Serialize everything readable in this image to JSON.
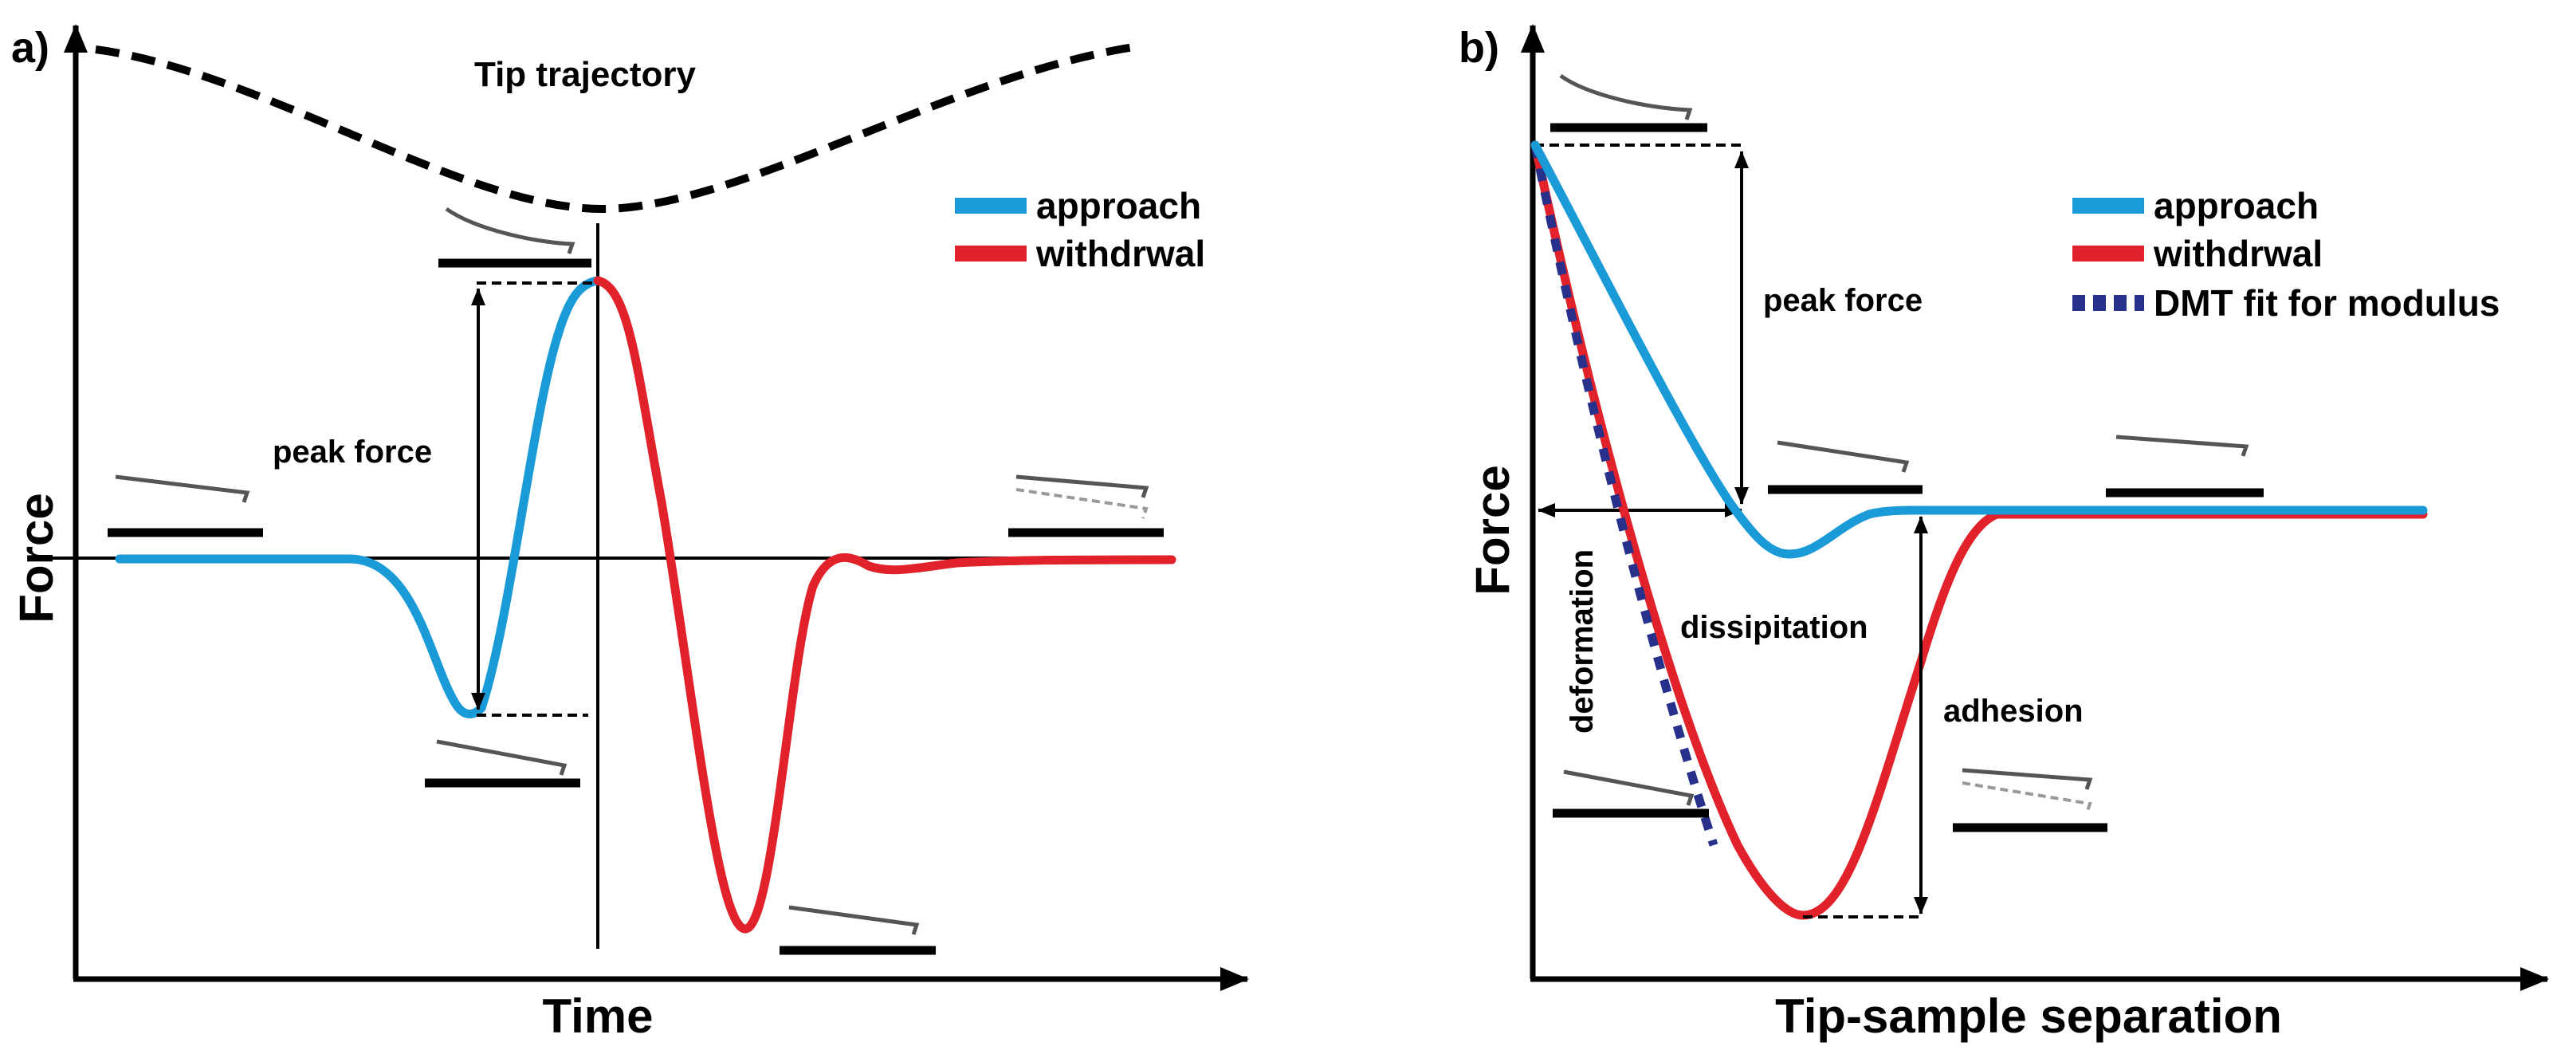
{
  "panels": [
    {
      "letter": "a)",
      "title": "Tip trajectory",
      "xlabel": "Time",
      "ylabel": "Force",
      "annotations": {
        "peak_force": "peak force"
      },
      "legend": [
        {
          "label": "approach",
          "color": "#1a9ad6"
        },
        {
          "label": "withdrwal",
          "color": "#e2222a"
        }
      ]
    },
    {
      "letter": "b)",
      "xlabel": "Tip-sample separation",
      "ylabel": "Force",
      "annotations": {
        "peak_force": "peak force",
        "deformation": "deformation",
        "dissipitation": "dissipitation",
        "adhesion": "adhesion"
      },
      "legend": [
        {
          "label": "approach",
          "color": "#1a9ad6"
        },
        {
          "label": "withdrwal",
          "color": "#e2222a"
        },
        {
          "label": "DMT fit for modulus",
          "color": "#27318b",
          "style": "dashed"
        }
      ]
    }
  ],
  "colors": {
    "approach": "#1a9ad6",
    "withdrawal": "#e2222a",
    "dmt": "#27318b",
    "cantilever": "#555555"
  }
}
